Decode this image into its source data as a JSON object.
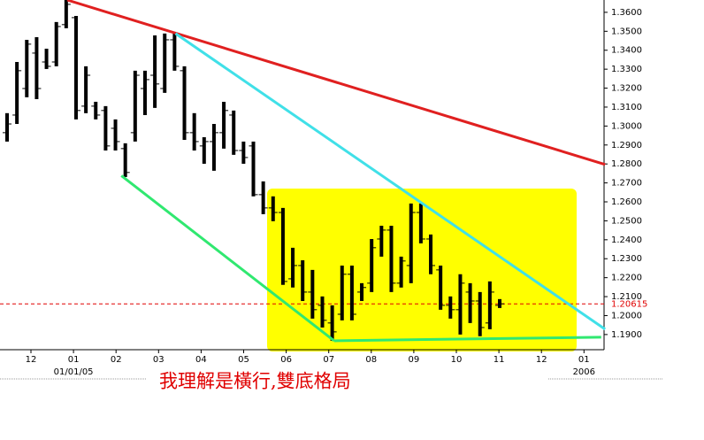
{
  "chart_data": {
    "type": "ohlc",
    "annotation": "我理解是橫行,雙底格局",
    "color": "#000000",
    "open": [
      1.2965,
      1.3058,
      1.3198,
      1.3385,
      1.3338,
      1.3338,
      1.3535,
      1.3572,
      1.3105,
      1.3105,
      1.3082,
      1.2988,
      1.2881,
      1.2965,
      1.3198,
      1.3268,
      1.3198,
      1.3455,
      1.3292,
      1.2965,
      1.2895,
      1.2918,
      1.2965,
      1.3058,
      1.2871,
      1.2895,
      1.2638,
      1.2568,
      1.2544,
      1.2194,
      1.2264,
      1.2124,
      1.2054,
      1.1961,
      1.2007,
      1.2218,
      1.2124,
      1.2171,
      1.2404,
      1.2451,
      1.2171,
      1.2264,
      1.2544,
      1.2404,
      1.2241,
      1.2054,
      1.2031,
      1.2124,
      1.2077,
      1.1961,
      1.2054
    ],
    "high": [
      1.3068,
      1.3338,
      1.3455,
      1.3469,
      1.3408,
      1.3549,
      1.3665,
      1.3581,
      1.3315,
      1.3128,
      1.3105,
      1.3035,
      1.2909,
      1.3292,
      1.3292,
      1.3478,
      1.3488,
      1.3488,
      1.3315,
      1.3068,
      1.2941,
      1.3011,
      1.3128,
      1.3082,
      1.2918,
      1.2918,
      1.2708,
      1.2629,
      1.2568,
      1.2358,
      1.2292,
      1.2241,
      1.2101,
      1.2054,
      1.2264,
      1.2264,
      1.2171,
      1.2404,
      1.2474,
      1.2474,
      1.2311,
      1.2591,
      1.2591,
      1.2428,
      1.2264,
      1.2101,
      1.2218,
      1.2171,
      1.2124,
      1.218,
      1.2087
    ],
    "low": [
      1.2918,
      1.3011,
      1.3152,
      1.3142,
      1.3301,
      1.3315,
      1.3516,
      1.3035,
      1.3068,
      1.3035,
      1.2871,
      1.2871,
      1.2731,
      1.2918,
      1.3058,
      1.3096,
      1.3175,
      1.3292,
      1.2927,
      1.2871,
      1.2801,
      1.2764,
      1.2881,
      1.2848,
      1.2801,
      1.2629,
      1.2535,
      1.2498,
      1.2162,
      1.2148,
      1.2077,
      1.1984,
      1.1937,
      1.1867,
      1.1975,
      1.1975,
      1.2077,
      1.2124,
      1.2311,
      1.2124,
      1.2148,
      1.2171,
      1.2381,
      1.2218,
      1.2031,
      1.1984,
      1.19,
      1.1961,
      1.1891,
      1.1928,
      1.204
    ],
    "close": [
      1.3011,
      1.3292,
      1.3432,
      1.3198,
      1.3315,
      1.3525,
      1.3642,
      1.3082,
      1.3268,
      1.3058,
      1.2895,
      1.2918,
      1.2755,
      1.3268,
      1.3245,
      1.3222,
      1.3455,
      1.3315,
      1.2965,
      1.2918,
      1.2918,
      1.2965,
      1.3082,
      1.2871,
      1.2834,
      1.2638,
      1.2568,
      1.2544,
      1.218,
      1.2264,
      1.2124,
      1.2031,
      1.1975,
      1.1914,
      1.2218,
      1.2007,
      1.2148,
      1.2358,
      1.2451,
      1.2171,
      1.2288,
      1.2544,
      1.2404,
      1.2264,
      1.2054,
      1.2031,
      1.2171,
      1.2077,
      1.1937,
      1.2124,
      1.2062
    ],
    "categories": [
      "12",
      "01",
      "02",
      "03",
      "04",
      "05",
      "06",
      "07",
      "08",
      "09",
      "10",
      "11",
      "12",
      "01"
    ],
    "categories2": [
      null,
      "01/01/05",
      null,
      null,
      null,
      null,
      null,
      null,
      null,
      null,
      null,
      null,
      null,
      "2006"
    ],
    "ylim": [
      1.182,
      1.3665
    ],
    "yticks": [
      {
        "value": 1.19,
        "label": "1.1900"
      },
      {
        "value": 1.2,
        "label": "1.2000"
      },
      {
        "value": 1.21,
        "label": "1.2100"
      },
      {
        "value": 1.22,
        "label": "1.2200"
      },
      {
        "value": 1.23,
        "label": "1.2300"
      },
      {
        "value": 1.24,
        "label": "1.2400"
      },
      {
        "value": 1.25,
        "label": "1.2500"
      },
      {
        "value": 1.26,
        "label": "1.2600"
      },
      {
        "value": 1.27,
        "label": "1.2700"
      },
      {
        "value": 1.28,
        "label": "1.2800"
      },
      {
        "value": 1.29,
        "label": "1.2900"
      },
      {
        "value": 1.3,
        "label": "1.3000"
      },
      {
        "value": 1.31,
        "label": "1.3100"
      },
      {
        "value": 1.32,
        "label": "1.3200"
      },
      {
        "value": 1.33,
        "label": "1.3300"
      },
      {
        "value": 1.34,
        "label": "1.3400"
      },
      {
        "value": 1.35,
        "label": "1.3500"
      },
      {
        "value": 1.36,
        "label": "1.3600"
      }
    ],
    "ref_line": 1.20615,
    "ref_color": "#e00000",
    "trendlines": [
      {
        "color": "#e02020",
        "x": [
          6.1,
          60.7
        ],
        "y": [
          1.3665,
          1.2797
        ]
      },
      {
        "color": "#40e0e8",
        "x": [
          17.1,
          60.7
        ],
        "y": [
          1.3488,
          1.1928
        ]
      },
      {
        "color": "#30e870",
        "x": [
          11.6,
          33.2
        ],
        "y": [
          1.2738,
          1.1867
        ]
      },
      {
        "color": "#30e870",
        "x": [
          33.2,
          60.3
        ],
        "y": [
          1.1867,
          1.1886
        ]
      }
    ]
  }
}
